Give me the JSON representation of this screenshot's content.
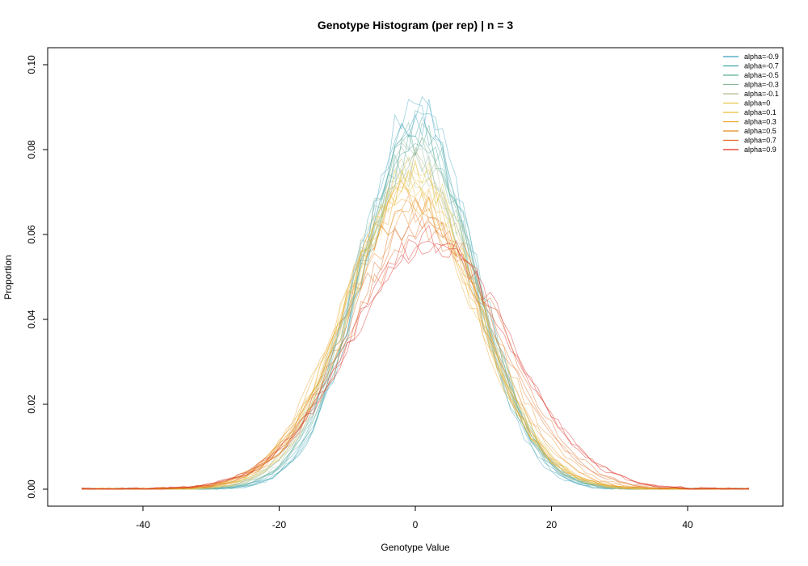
{
  "chart_data": {
    "type": "line",
    "title": "Genotype Histogram (per rep) | n = 3",
    "xlabel": "Genotype Value",
    "ylabel": "Proportion",
    "xlim": [
      -54,
      54
    ],
    "ylim": [
      -0.004,
      0.104
    ],
    "xticks": [
      -40,
      -20,
      0,
      20,
      40
    ],
    "xtick_labels": [
      "-40",
      "-20",
      "0",
      "20",
      "40"
    ],
    "yticks": [
      0,
      0.02,
      0.04,
      0.06,
      0.08,
      0.1
    ],
    "ytick_labels": [
      "0.00",
      "0.02",
      "0.04",
      "0.06",
      "0.08",
      "0.10"
    ],
    "x_range": [
      -49,
      49
    ],
    "grid": false,
    "legend_position": "top-right",
    "reps_per_series": 3,
    "series": [
      {
        "name": "alpha=-0.9",
        "color": "#3a9fc0",
        "peak": 0.088,
        "sd": 8.2,
        "mean": 0.4
      },
      {
        "name": "alpha=-0.7",
        "color": "#3fa7a8",
        "peak": 0.085,
        "sd": 8.4,
        "mean": 0.3
      },
      {
        "name": "alpha=-0.5",
        "color": "#5eae96",
        "peak": 0.082,
        "sd": 8.7,
        "mean": 0.2
      },
      {
        "name": "alpha=-0.3",
        "color": "#8cb69c",
        "peak": 0.079,
        "sd": 8.9,
        "mean": 0.1
      },
      {
        "name": "alpha=-0.1",
        "color": "#b7bc8c",
        "peak": 0.076,
        "sd": 9.2,
        "mean": 0.0
      },
      {
        "name": "alpha=0",
        "color": "#e6c74a",
        "peak": 0.074,
        "sd": 9.4,
        "mean": -0.2
      },
      {
        "name": "alpha=0.1",
        "color": "#e9bd35",
        "peak": 0.072,
        "sd": 9.6,
        "mean": -0.4
      },
      {
        "name": "alpha=0.3",
        "color": "#eba42a",
        "peak": 0.069,
        "sd": 9.9,
        "mean": -0.5
      },
      {
        "name": "alpha=0.5",
        "color": "#e88a1e",
        "peak": 0.066,
        "sd": 10.3,
        "mean": 0.5
      },
      {
        "name": "alpha=0.7",
        "color": "#e0651c",
        "peak": 0.062,
        "sd": 10.9,
        "mean": 1.2
      },
      {
        "name": "alpha=0.9",
        "color": "#dc2a1f",
        "peak": 0.059,
        "sd": 11.5,
        "mean": 1.8
      }
    ]
  }
}
